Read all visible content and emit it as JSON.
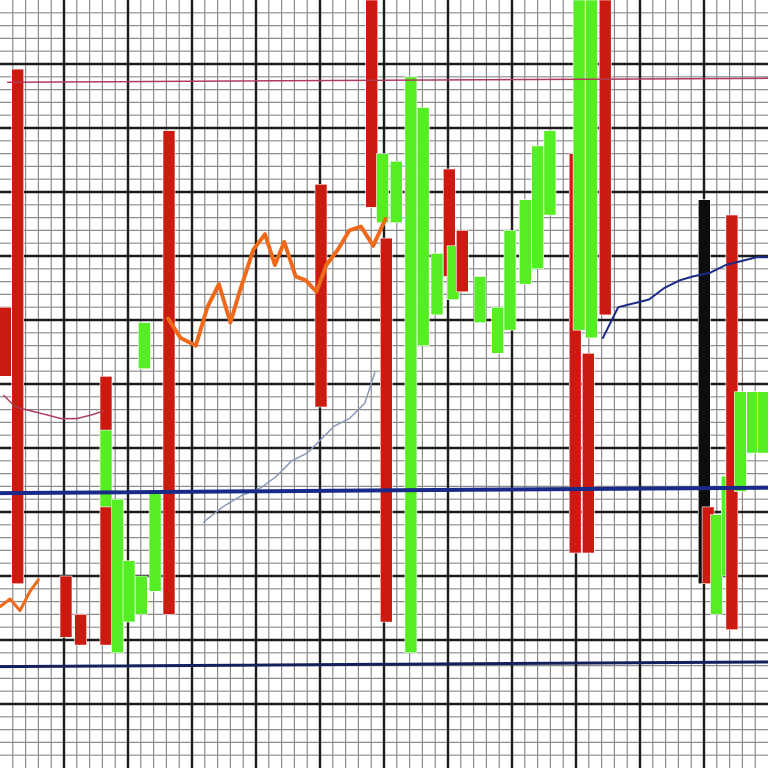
{
  "colors": {
    "background": "#ffffff",
    "grid_major": "#1c1c1c",
    "grid_minor": "#8a8a8a",
    "bull": "#55ee22",
    "bear": "#cc1a10",
    "dark_bar": "#0d0d0d",
    "orange_line": "#ee6a1a",
    "blue_line": "#1a2a88",
    "navy_line": "#141f5c",
    "pink_line": "#b03a5a",
    "faint_line": "#8899bb"
  },
  "chart_data": {
    "type": "candlestick",
    "title": "",
    "xlabel": "",
    "ylabel": "",
    "tick_labels_visible": false,
    "legend": "none",
    "grid": true,
    "xlim": [
      0,
      100
    ],
    "ylim": [
      0,
      100
    ],
    "bars": [
      {
        "x": 0.7,
        "low": 51,
        "high": 60,
        "color": "bear"
      },
      {
        "x": 2.3,
        "low": 24,
        "high": 91,
        "color": "bear"
      },
      {
        "x": 8.6,
        "low": 17,
        "high": 25,
        "color": "bear"
      },
      {
        "x": 10.5,
        "low": 16,
        "high": 20,
        "color": "bear"
      },
      {
        "x": 13.8,
        "low": 16,
        "high": 51,
        "color": "bear"
      },
      {
        "x": 13.8,
        "low": 34,
        "high": 44,
        "color": "bull"
      },
      {
        "x": 15.3,
        "low": 15,
        "high": 35,
        "color": "bull"
      },
      {
        "x": 16.8,
        "low": 19,
        "high": 27,
        "color": "bull"
      },
      {
        "x": 18.4,
        "low": 20,
        "high": 25,
        "color": "bull"
      },
      {
        "x": 18.8,
        "low": 52,
        "high": 58,
        "color": "bull"
      },
      {
        "x": 20.2,
        "low": 23,
        "high": 36,
        "color": "bull"
      },
      {
        "x": 22.0,
        "low": 20,
        "high": 83,
        "color": "bear"
      },
      {
        "x": 41.8,
        "low": 47,
        "high": 76,
        "color": "bear"
      },
      {
        "x": 48.4,
        "low": 73,
        "high": 100,
        "color": "bear"
      },
      {
        "x": 50.3,
        "low": 19,
        "high": 69,
        "color": "bear"
      },
      {
        "x": 49.8,
        "low": 71,
        "high": 80,
        "color": "bull"
      },
      {
        "x": 51.6,
        "low": 71,
        "high": 79,
        "color": "bull"
      },
      {
        "x": 53.5,
        "low": 15,
        "high": 90,
        "color": "bull"
      },
      {
        "x": 55.1,
        "low": 55,
        "high": 86,
        "color": "bull"
      },
      {
        "x": 56.9,
        "low": 59,
        "high": 67,
        "color": "bull"
      },
      {
        "x": 58.5,
        "low": 64,
        "high": 78,
        "color": "bear"
      },
      {
        "x": 59.0,
        "low": 61,
        "high": 68,
        "color": "bull"
      },
      {
        "x": 60.2,
        "low": 62,
        "high": 70,
        "color": "bear"
      },
      {
        "x": 62.5,
        "low": 58,
        "high": 64,
        "color": "bull"
      },
      {
        "x": 64.8,
        "low": 54,
        "high": 60,
        "color": "bull"
      },
      {
        "x": 66.4,
        "low": 57,
        "high": 70,
        "color": "bull"
      },
      {
        "x": 68.4,
        "low": 63,
        "high": 74,
        "color": "bull"
      },
      {
        "x": 70.0,
        "low": 65,
        "high": 81,
        "color": "bull"
      },
      {
        "x": 71.6,
        "low": 72,
        "high": 83,
        "color": "bull"
      },
      {
        "x": 74.9,
        "low": 28,
        "high": 80,
        "color": "bear"
      },
      {
        "x": 75.4,
        "low": 57,
        "high": 100,
        "color": "bull"
      },
      {
        "x": 77.0,
        "low": 56,
        "high": 100,
        "color": "bull"
      },
      {
        "x": 76.6,
        "low": 28,
        "high": 54,
        "color": "bear"
      },
      {
        "x": 78.8,
        "low": 59,
        "high": 100,
        "color": "bear"
      },
      {
        "x": 91.7,
        "low": 24,
        "high": 74,
        "color": "dark_bar"
      },
      {
        "x": 92.2,
        "low": 24,
        "high": 34,
        "color": "bear"
      },
      {
        "x": 93.3,
        "low": 20,
        "high": 33,
        "color": "bull"
      },
      {
        "x": 94.7,
        "low": 25,
        "high": 38,
        "color": "bull"
      },
      {
        "x": 95.3,
        "low": 18,
        "high": 72,
        "color": "bear"
      },
      {
        "x": 96.4,
        "low": 36,
        "high": 49,
        "color": "bull"
      },
      {
        "x": 98.0,
        "low": 41,
        "high": 49,
        "color": "bull"
      },
      {
        "x": 99.4,
        "low": 41,
        "high": 49,
        "color": "bull"
      }
    ],
    "lines": [
      {
        "id": "orange-price",
        "color": "orange_line",
        "width": 4,
        "x": [
          21.9,
          23.5,
          25.5,
          27.0,
          28.5,
          30.0,
          31.2,
          33.0,
          34.5,
          35.8,
          37.0,
          38.5,
          39.8,
          41.2,
          42.5,
          44.0,
          45.5,
          47.0,
          48.6,
          50.2
        ],
        "y": [
          58.5,
          56.0,
          55.0,
          60.0,
          63.0,
          58.0,
          62.0,
          67.5,
          69.5,
          65.5,
          68.5,
          64.0,
          63.5,
          62.0,
          65.5,
          67.5,
          70.0,
          70.5,
          68.0,
          71.5
        ]
      },
      {
        "id": "orange-low",
        "color": "orange_line",
        "width": 3,
        "x": [
          0.0,
          1.3,
          2.6,
          3.9,
          5.0
        ],
        "y": [
          21.0,
          22.0,
          20.5,
          23.0,
          24.5
        ]
      },
      {
        "id": "trend-right",
        "color": "blue_line",
        "width": 2,
        "x": [
          78.5,
          80.5,
          82.5,
          84.5,
          86.5,
          88.5,
          90.2,
          92.5,
          94.5,
          96.5,
          98.5,
          100.0
        ],
        "y": [
          56.0,
          60.0,
          60.5,
          61.0,
          62.5,
          63.5,
          64.0,
          64.5,
          65.5,
          66.0,
          66.5,
          66.5
        ]
      },
      {
        "id": "dip-line",
        "color": "pink_line",
        "width": 1.5,
        "x": [
          0.5,
          2.0,
          4.0,
          6.0,
          8.0,
          10.0,
          12.0,
          13.5
        ],
        "y": [
          48.5,
          47.0,
          46.5,
          46.0,
          45.5,
          45.5,
          46.0,
          46.5
        ]
      },
      {
        "id": "rise-line",
        "color": "faint_line",
        "width": 1.5,
        "x": [
          26.5,
          29.0,
          31.5,
          34.0,
          36.0,
          38.0,
          40.0,
          42.0,
          43.5,
          45.5,
          47.5,
          48.8
        ],
        "y": [
          32.0,
          34.0,
          35.5,
          36.5,
          38.0,
          40.0,
          41.0,
          43.0,
          44.5,
          45.5,
          47.5,
          51.5
        ]
      },
      {
        "id": "top-ref",
        "color": "pink_line",
        "width": 1.5,
        "x": [
          1.0,
          100.0
        ],
        "y": [
          89.3,
          89.8
        ]
      },
      {
        "id": "level-high",
        "color": "blue_line",
        "width": 4,
        "x": [
          0.0,
          100.0
        ],
        "y": [
          35.8,
          36.5
        ]
      },
      {
        "id": "level-low",
        "color": "navy_line",
        "width": 3,
        "x": [
          0.0,
          100.0
        ],
        "y": [
          13.2,
          13.8
        ]
      }
    ]
  }
}
